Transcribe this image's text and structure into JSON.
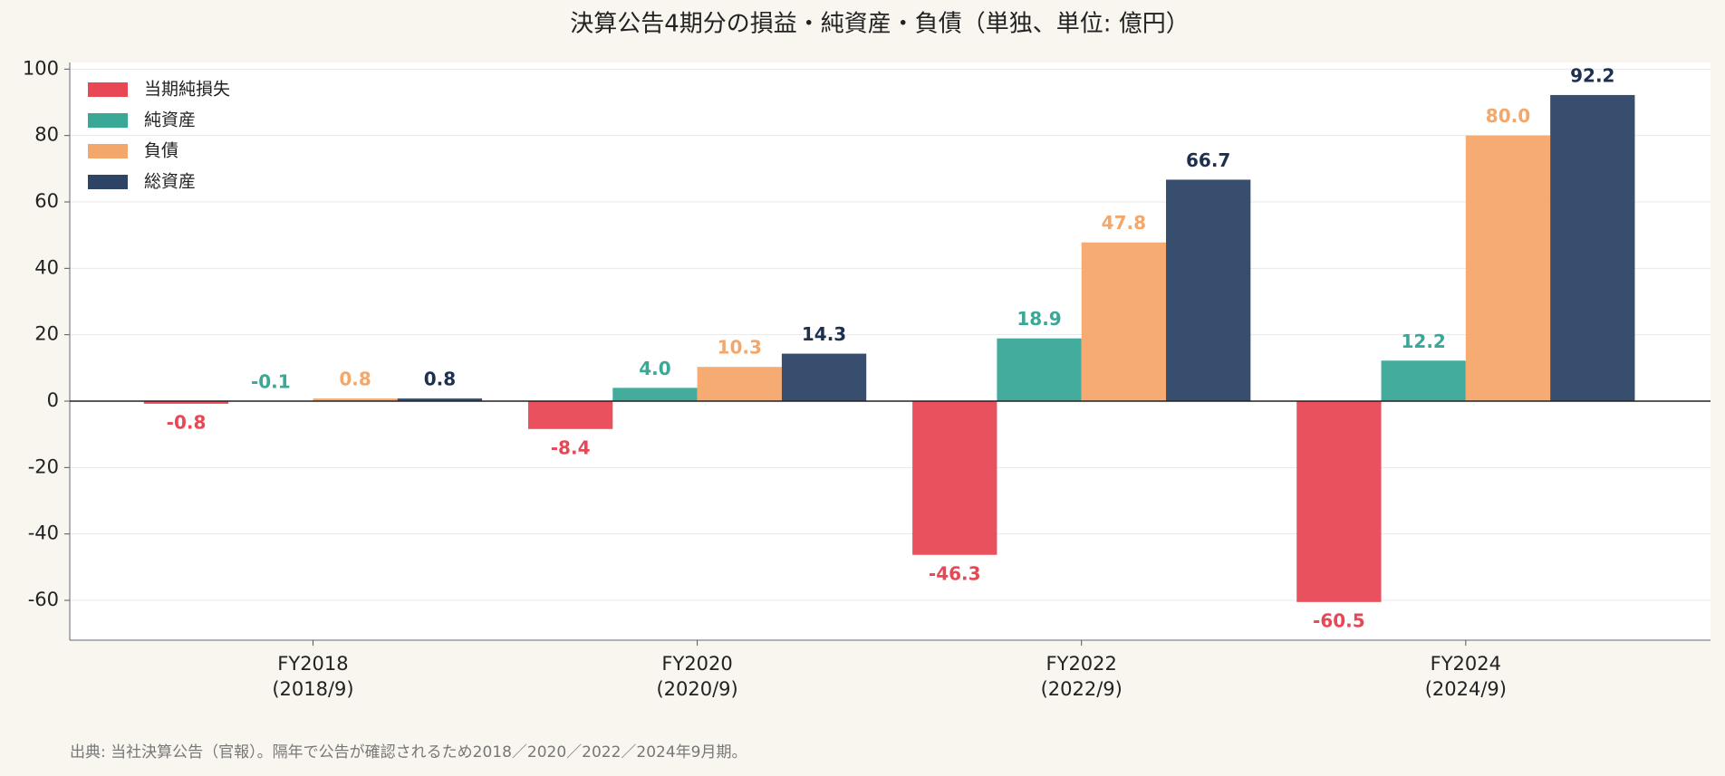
{
  "chart_data": {
    "type": "bar",
    "title": "決算公告4期分の損益・純資産・負債（単独、単位: 億円）",
    "categories": [
      "FY2018",
      "FY2020",
      "FY2022",
      "FY2024"
    ],
    "category_periods": [
      "(2018/9)",
      "(2020/9)",
      "(2022/9)",
      "(2024/9)"
    ],
    "series": [
      {
        "name": "当期純損失",
        "color": "#e84855",
        "values": [
          -0.8,
          -8.4,
          -46.3,
          -60.5
        ],
        "value_labels": [
          "-0.8",
          "-8.4",
          "-46.3",
          "-60.5"
        ]
      },
      {
        "name": "純資産",
        "color": "#3aa897",
        "values": [
          -0.1,
          4.0,
          18.9,
          12.2
        ],
        "value_labels": [
          "-0.1",
          "4.0",
          "18.9",
          "12.2"
        ]
      },
      {
        "name": "負債",
        "color": "#f4a76a",
        "values": [
          0.8,
          10.3,
          47.8,
          80.0
        ],
        "value_labels": [
          "0.8",
          "10.3",
          "47.8",
          "80.0"
        ]
      },
      {
        "name": "総資産",
        "color": "#2d4466",
        "values": [
          0.8,
          14.3,
          66.7,
          92.2
        ],
        "value_labels": [
          "0.8",
          "14.3",
          "66.7",
          "92.2"
        ]
      }
    ],
    "ylim": [
      -72,
      102
    ],
    "yticks": [
      -60,
      -40,
      -20,
      0,
      20,
      40,
      60,
      80,
      100
    ],
    "grid": true,
    "legend": "upper left",
    "footnote": "出典: 当社決算公告（官報）。隔年で公告が確認されるため2018／2020／2022／2024年9月期。"
  }
}
